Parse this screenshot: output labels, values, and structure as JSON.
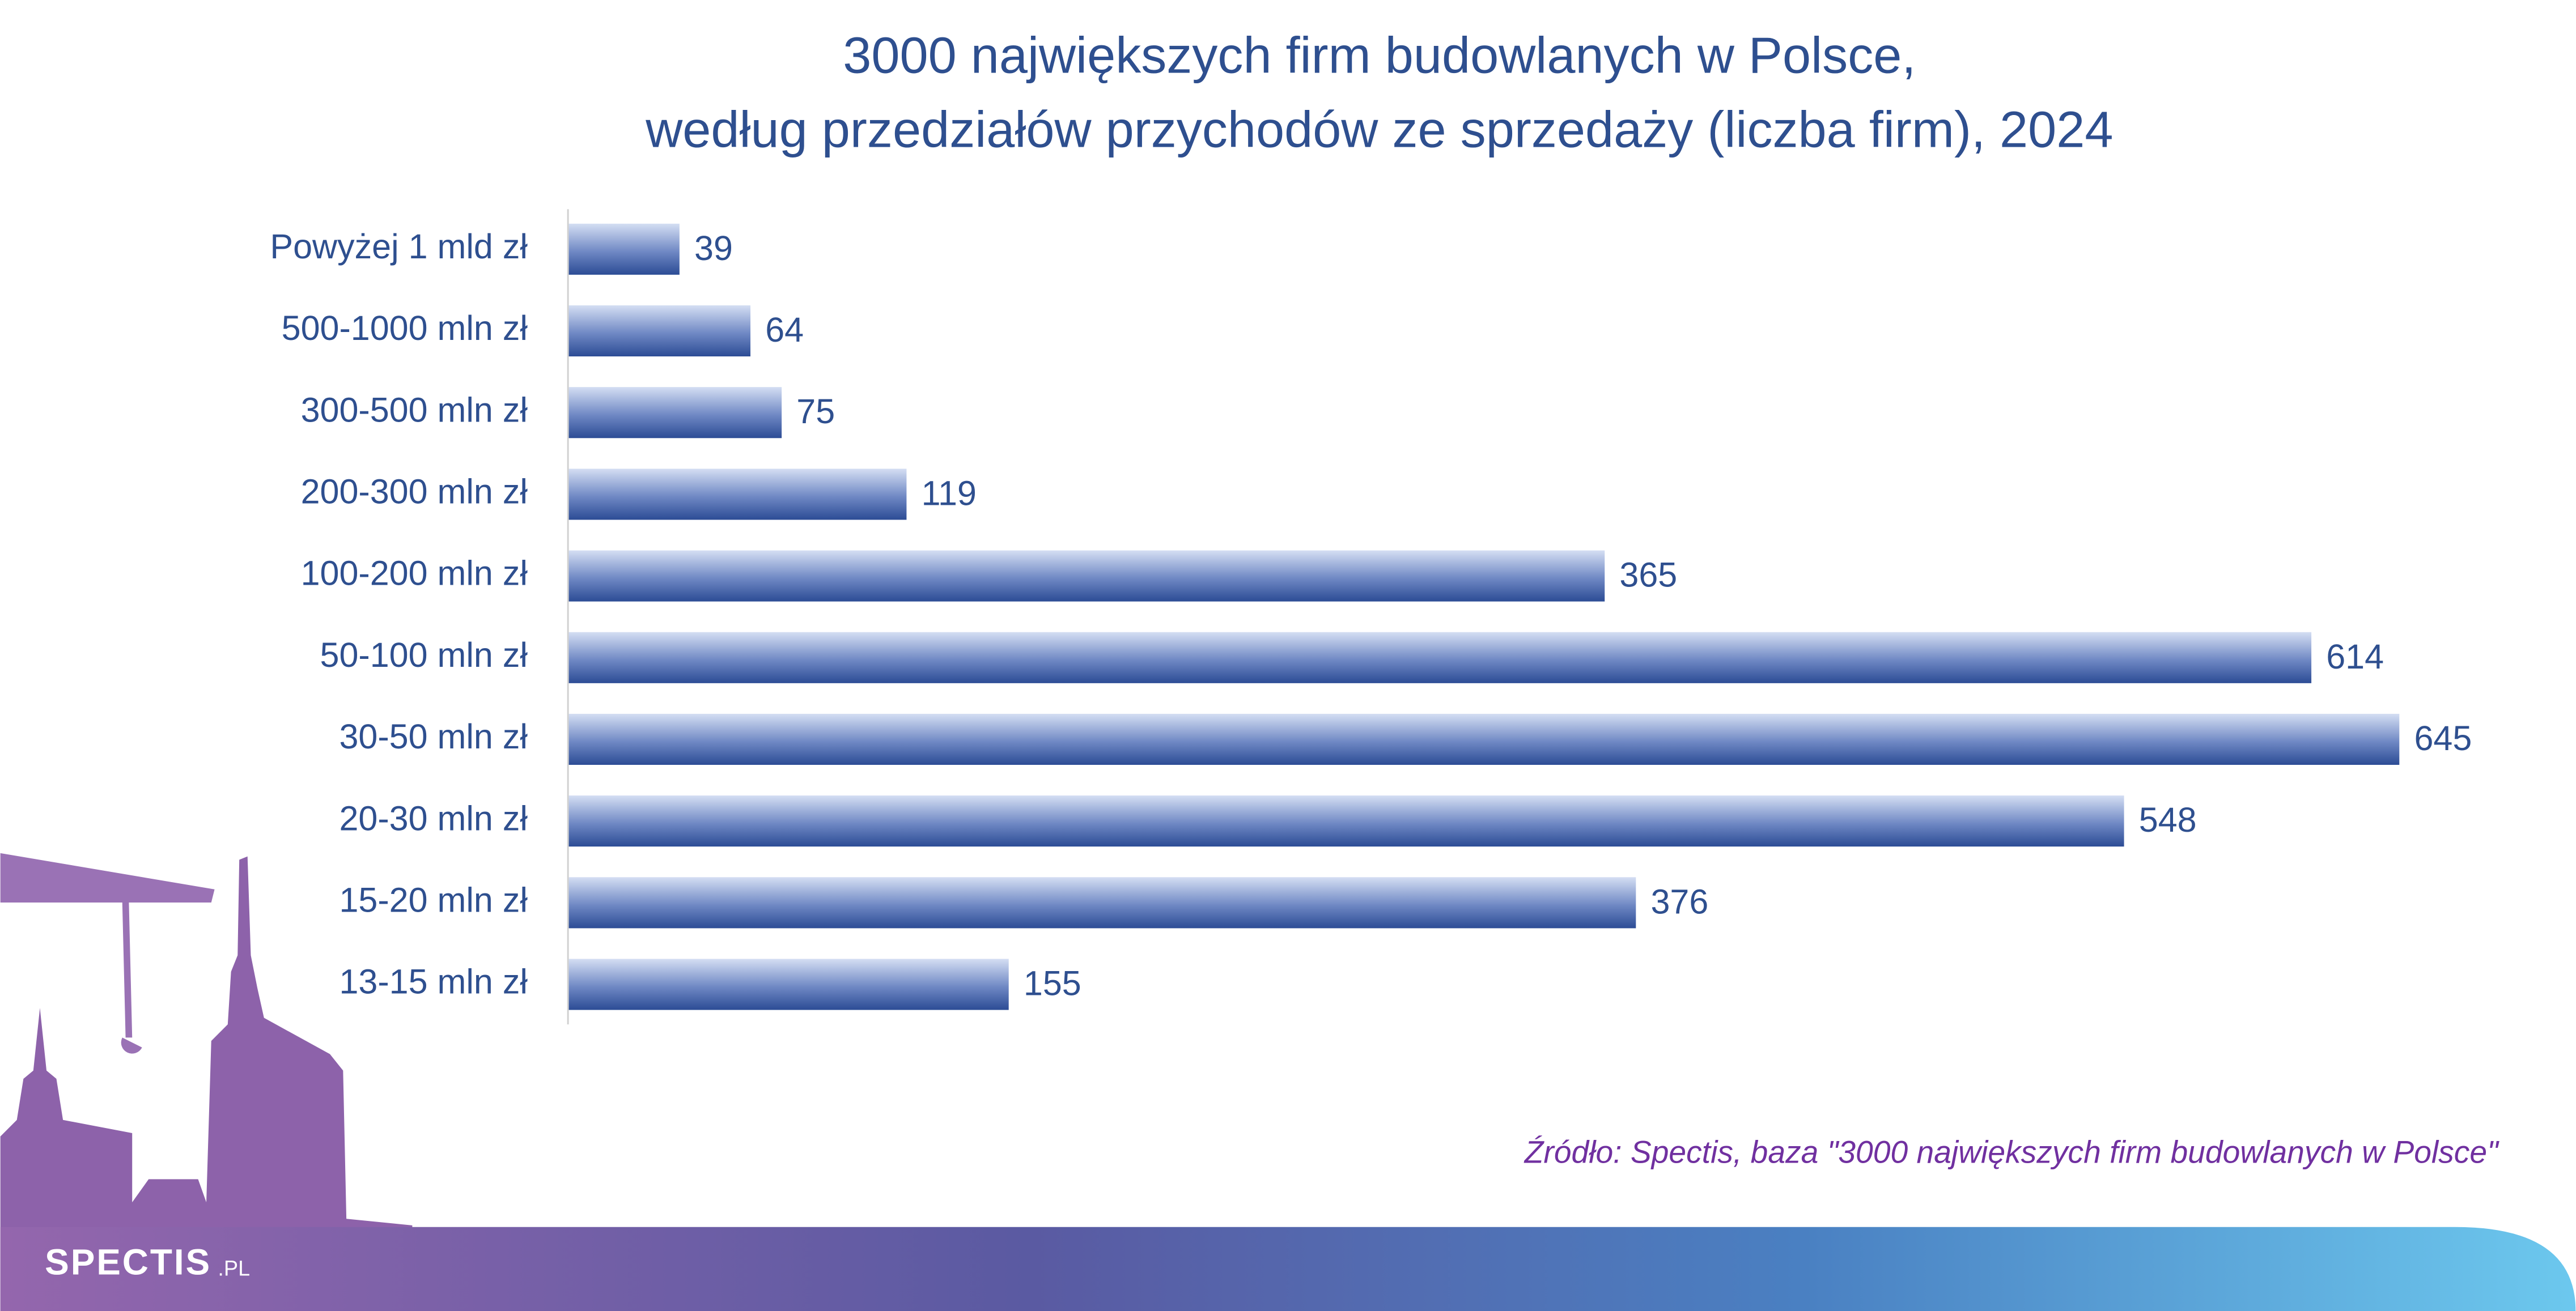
{
  "chart_data": {
    "type": "bar",
    "orientation": "horizontal",
    "title": "3000 największych firm budowlanych w Polsce,",
    "subtitle": "według przedziałów przychodów ze sprzedaży (liczba firm), 2024",
    "categories": [
      "Powyżej 1 mld zł",
      "500-1000 mln zł",
      "300-500 mln zł",
      "200-300 mln zł",
      "100-200 mln zł",
      "50-100 mln zł",
      "30-50 mln zł",
      "20-30 mln zł",
      "15-20 mln zł",
      "13-15 mln zł"
    ],
    "values": [
      39,
      64,
      75,
      119,
      365,
      614,
      645,
      548,
      376,
      155
    ],
    "color": "#2f4f98",
    "source": "Źródło: Spectis, baza \"3000 największych firm budowlanych w Polsce\"",
    "logo": {
      "name": "SPECTIS",
      "suffix": ".PL"
    }
  }
}
